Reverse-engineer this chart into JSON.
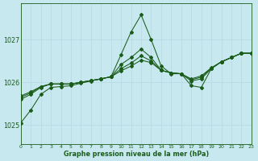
{
  "title": "Graphe pression niveau de la mer (hPa)",
  "bg_color": "#c8e8f0",
  "grid_color": "#aad4dc",
  "line_color": "#1a5c1a",
  "xlim": [
    0,
    23
  ],
  "ylim": [
    1024.55,
    1027.85
  ],
  "yticks": [
    1025,
    1026,
    1027
  ],
  "xtick_labels": [
    "0",
    "1",
    "2",
    "3",
    "4",
    "5",
    "6",
    "7",
    "8",
    "9",
    "10",
    "11",
    "12",
    "13",
    "14",
    "15",
    "16",
    "17",
    "18",
    "19",
    "20",
    "21",
    "22",
    "23"
  ],
  "series": [
    [
      1025.05,
      1025.35,
      1025.72,
      1025.88,
      1025.9,
      1025.92,
      1025.98,
      1026.03,
      1026.08,
      1026.13,
      1026.65,
      1027.18,
      1027.58,
      1027.0,
      1026.38,
      1026.2,
      1026.2,
      1025.92,
      1025.88,
      1026.32,
      1026.48,
      1026.58,
      1026.68,
      1026.68
    ],
    [
      1025.6,
      1025.72,
      1025.88,
      1025.96,
      1025.96,
      1025.96,
      1026.0,
      1026.04,
      1026.08,
      1026.13,
      1026.42,
      1026.58,
      1026.78,
      1026.58,
      1026.28,
      1026.22,
      1026.2,
      1026.03,
      1026.08,
      1026.32,
      1026.48,
      1026.58,
      1026.68,
      1026.68
    ],
    [
      1025.65,
      1025.75,
      1025.9,
      1025.96,
      1025.96,
      1025.96,
      1026.0,
      1026.04,
      1026.08,
      1026.13,
      1026.32,
      1026.45,
      1026.62,
      1026.5,
      1026.28,
      1026.22,
      1026.2,
      1026.06,
      1026.12,
      1026.33,
      1026.48,
      1026.58,
      1026.68,
      1026.68
    ],
    [
      1025.68,
      1025.78,
      1025.9,
      1025.96,
      1025.96,
      1025.96,
      1026.0,
      1026.04,
      1026.08,
      1026.13,
      1026.27,
      1026.38,
      1026.52,
      1026.46,
      1026.28,
      1026.22,
      1026.2,
      1026.08,
      1026.15,
      1026.34,
      1026.48,
      1026.58,
      1026.68,
      1026.68
    ]
  ]
}
